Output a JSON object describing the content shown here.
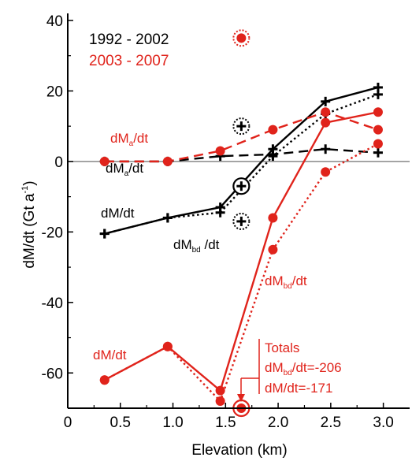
{
  "chart_data": {
    "type": "line",
    "xlabel": "Elevation (km)",
    "ylabel": "dM/dt (Gt a",
    "ylabel_superscript": "-1",
    "ylabel_close": ")",
    "xlim": [
      0,
      3.25
    ],
    "ylim": [
      -70,
      42
    ],
    "xticks": [
      0,
      0.5,
      1.0,
      1.5,
      2.0,
      2.5,
      3.0
    ],
    "xtick_labels": [
      "0",
      "0.5",
      "1.0",
      "1.5",
      "2.0",
      "2.5",
      "3.0"
    ],
    "yticks": [
      -60,
      -40,
      -20,
      0,
      20,
      40
    ],
    "ytick_labels": [
      "-60",
      "-40",
      "-20",
      "0",
      "20",
      "40"
    ],
    "zero_line": true,
    "colors": {
      "period_1992_2002": "#000000",
      "period_2003_2007": "#e0231b",
      "zero_line": "#888888"
    },
    "legend": [
      {
        "name": "1992 - 2002",
        "color": "#000000"
      },
      {
        "name": "2003 - 2007",
        "color": "#e0231b"
      }
    ],
    "series": [
      {
        "period": "1992 - 2002",
        "label": "dM/dt",
        "marker": "cross",
        "style": "solid",
        "color": "#000000",
        "x": [
          0.35,
          0.95,
          1.45,
          1.95,
          2.45,
          2.95
        ],
        "y": [
          -20.5,
          -16,
          -13,
          3.5,
          17,
          21
        ]
      },
      {
        "period": "1992 - 2002",
        "label": "dM_a/dt",
        "marker": "cross",
        "style": "dashed",
        "color": "#000000",
        "x": [
          0.35,
          0.95,
          1.45,
          1.95,
          2.45,
          2.95
        ],
        "y": [
          0,
          0,
          1.5,
          2,
          3.5,
          2.5
        ]
      },
      {
        "period": "1992 - 2002",
        "label": "dM_bd/dt",
        "marker": "cross",
        "style": "dotted",
        "color": "#000000",
        "x": [
          0.35,
          0.95,
          1.45,
          1.95,
          2.45,
          2.95
        ],
        "y": [
          -20.5,
          -16,
          -14.5,
          1.5,
          13.5,
          19
        ]
      },
      {
        "period": "2003 - 2007",
        "label": "dM/dt",
        "marker": "circle",
        "style": "solid",
        "color": "#e0231b",
        "x": [
          0.35,
          0.95,
          1.45,
          1.95,
          2.45,
          2.95
        ],
        "y": [
          -62,
          -52.5,
          -65,
          -16,
          11,
          14
        ]
      },
      {
        "period": "2003 - 2007",
        "label": "dM_a/dt",
        "marker": "circle",
        "style": "dashed",
        "color": "#e0231b",
        "x": [
          0.35,
          0.95,
          1.45,
          1.95,
          2.45,
          2.95
        ],
        "y": [
          0,
          0,
          3,
          9,
          14,
          9
        ]
      },
      {
        "period": "2003 - 2007",
        "label": "dM_bd/dt",
        "marker": "circle",
        "style": "dotted",
        "color": "#e0231b",
        "x": [
          0.35,
          0.95,
          1.45,
          1.95,
          2.45,
          2.95
        ],
        "y": [
          -62,
          -52.5,
          -68,
          -25,
          -3,
          5
        ]
      }
    ],
    "totals_markers": [
      {
        "period": "1992 - 2002",
        "series": "dM_a/dt",
        "x": 1.65,
        "y": 10,
        "marker": "cross-in-dotted-circle"
      },
      {
        "period": "1992 - 2002",
        "series": "dM/dt",
        "x": 1.65,
        "y": -7,
        "marker": "cross-in-circle"
      },
      {
        "period": "1992 - 2002",
        "series": "dM_bd/dt",
        "x": 1.65,
        "y": -17,
        "marker": "cross-in-dotted-circle"
      },
      {
        "period": "2003 - 2007",
        "series": "dM_a/dt",
        "x": 1.65,
        "y": 35,
        "marker": "dot-in-dotted-circle"
      },
      {
        "period": "2003 - 2007",
        "series": "dM/dt",
        "x": 1.65,
        "y": -70,
        "marker": "dot-in-circle"
      }
    ],
    "annotations": {
      "red_dMa": {
        "main": "dM",
        "sub": "a",
        "tail": "/dt"
      },
      "black_dMa": {
        "main": "dM",
        "sub": "a",
        "tail": "/dt"
      },
      "black_dM": "dM/dt",
      "black_dMbd": {
        "main": "dM",
        "sub": "bd",
        "tail": " /dt"
      },
      "red_dMbd": {
        "main": "dM",
        "sub": "bd",
        "tail": "/dt"
      },
      "red_dM": "dM/dt",
      "totals_title": "Totals",
      "totals_line1": {
        "main": "dM",
        "sub": "bd",
        "tail": "/dt=-206"
      },
      "totals_line2": "dM/dt=-171"
    }
  }
}
